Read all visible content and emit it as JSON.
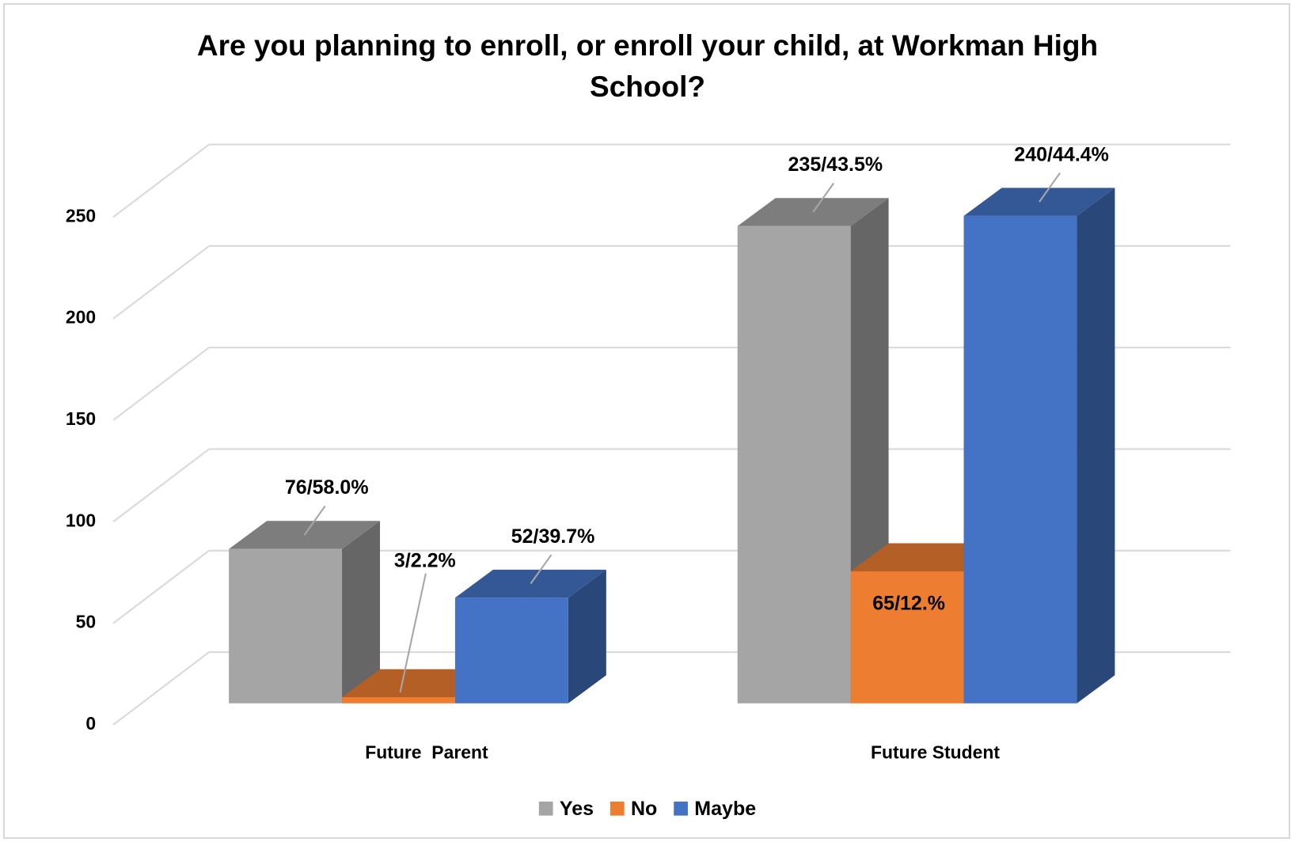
{
  "chart_data": {
    "type": "bar3d",
    "title": "Are you planning to enroll, or enroll your child, at Workman High School?",
    "categories": [
      "Future  Parent",
      "Future Student"
    ],
    "series": [
      {
        "name": "Yes",
        "color": "#a5a5a5",
        "values": [
          76,
          235
        ],
        "value_labels": [
          "76/58.0%",
          "235/43.5%"
        ]
      },
      {
        "name": "No",
        "color": "#ed7d31",
        "values": [
          3,
          65
        ],
        "value_labels": [
          "3/2.2%",
          "65/12.%"
        ]
      },
      {
        "name": "Maybe",
        "color": "#4472c4",
        "values": [
          52,
          240
        ],
        "value_labels": [
          "52/39.7%",
          "240/44.4%"
        ]
      }
    ],
    "ylim": [
      0,
      250
    ],
    "yticks": [
      0,
      50,
      100,
      150,
      200,
      250
    ],
    "grid": true,
    "legend": "bottom"
  }
}
